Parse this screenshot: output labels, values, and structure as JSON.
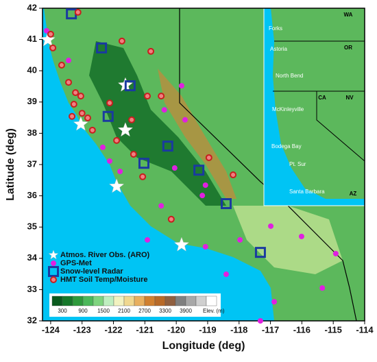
{
  "chart_data": {
    "type": "map",
    "xlabel": "Longitude (deg)",
    "ylabel": "Latitude (deg)",
    "xlim": [
      -124.26,
      -114
    ],
    "ylim": [
      32,
      42
    ],
    "xticks": [
      -124,
      -123,
      -122,
      -121,
      -120,
      -119,
      -118,
      -117,
      -116,
      -115,
      -114
    ],
    "yticks": [
      32,
      33,
      34,
      35,
      36,
      37,
      38,
      39,
      40,
      41,
      42
    ],
    "series": [
      {
        "name": "Atmos. River Obs. (ARO)",
        "marker": "star",
        "color": "#ffffff",
        "x": [
          -124.09,
          -123.04,
          -121.62,
          -121.62,
          -121.9,
          -119.83
        ],
        "y": [
          40.99,
          38.29,
          39.54,
          38.1,
          36.3,
          34.43
        ]
      },
      {
        "name": "GPS-Met",
        "marker": "dot",
        "color": "#e020e0",
        "x": [
          -124.13,
          -123.43,
          -119.83,
          -120.38,
          -122.34,
          -121.79,
          -120.05,
          -119.07,
          -119.17,
          -120.48,
          -120.92,
          -119.07,
          -117.97,
          -116.99,
          -116.01,
          -114.92,
          -115.35,
          -116.88,
          -117.32,
          -118.41,
          -122.12,
          -119.72
        ],
        "y": [
          41.28,
          40.33,
          39.52,
          38.75,
          37.55,
          36.78,
          36.89,
          36.34,
          36.01,
          35.68,
          34.59,
          34.37,
          34.59,
          35.03,
          34.7,
          34.15,
          33.05,
          32.61,
          32.0,
          33.49,
          37.11,
          38.43
        ]
      },
      {
        "name": "Snow-level Radar",
        "marker": "square",
        "color": "#1a3aa0",
        "x": [
          -123.34,
          -122.38,
          -121.47,
          -122.17,
          -121.03,
          -120.27,
          -119.28,
          -118.41,
          -117.32
        ],
        "y": [
          41.82,
          40.73,
          39.52,
          38.54,
          37.04,
          37.59,
          36.82,
          35.75,
          34.19
        ]
      },
      {
        "name": "HMT Soil Temp/Moisture",
        "marker": "ring",
        "color": "#c81e1e",
        "x": [
          -124.0,
          -123.93,
          -123.65,
          -123.43,
          -123.21,
          -123.04,
          -123.26,
          -123.0,
          -122.82,
          -123.32,
          -122.67,
          -121.9,
          -121.42,
          -120.92,
          -120.48,
          -120.81,
          -121.73,
          -123.13,
          -121.36,
          -121.07,
          -120.16,
          -118.19,
          -118.96,
          -122.12
        ],
        "y": [
          41.17,
          40.73,
          40.18,
          39.63,
          39.3,
          39.19,
          38.93,
          38.64,
          38.49,
          38.54,
          38.1,
          37.77,
          38.43,
          39.19,
          39.19,
          40.62,
          40.95,
          41.87,
          37.33,
          36.61,
          35.25,
          36.67,
          37.22,
          38.97
        ]
      }
    ],
    "colorbar": {
      "colors": [
        "#0a5a1e",
        "#16782a",
        "#2e9a3c",
        "#4cb85a",
        "#7fd47f",
        "#bfeec0",
        "#f2f2c0",
        "#f0d890",
        "#e8b060",
        "#d08030",
        "#b86a28",
        "#906040",
        "#808080",
        "#a8a8a8",
        "#d0d0d0",
        "#ffffff"
      ],
      "ticks": [
        300,
        900,
        1500,
        2100,
        2700,
        3300,
        3900
      ],
      "label": "Elev. (m)"
    },
    "inset": {
      "states": [
        "WA",
        "OR",
        "CA",
        "NV",
        "AZ"
      ],
      "places": [
        "Forks",
        "Astoria",
        "North Bend",
        "McKinleyville",
        "Bodega Bay",
        "Pt. Sur",
        "Santa Barbara"
      ]
    }
  }
}
